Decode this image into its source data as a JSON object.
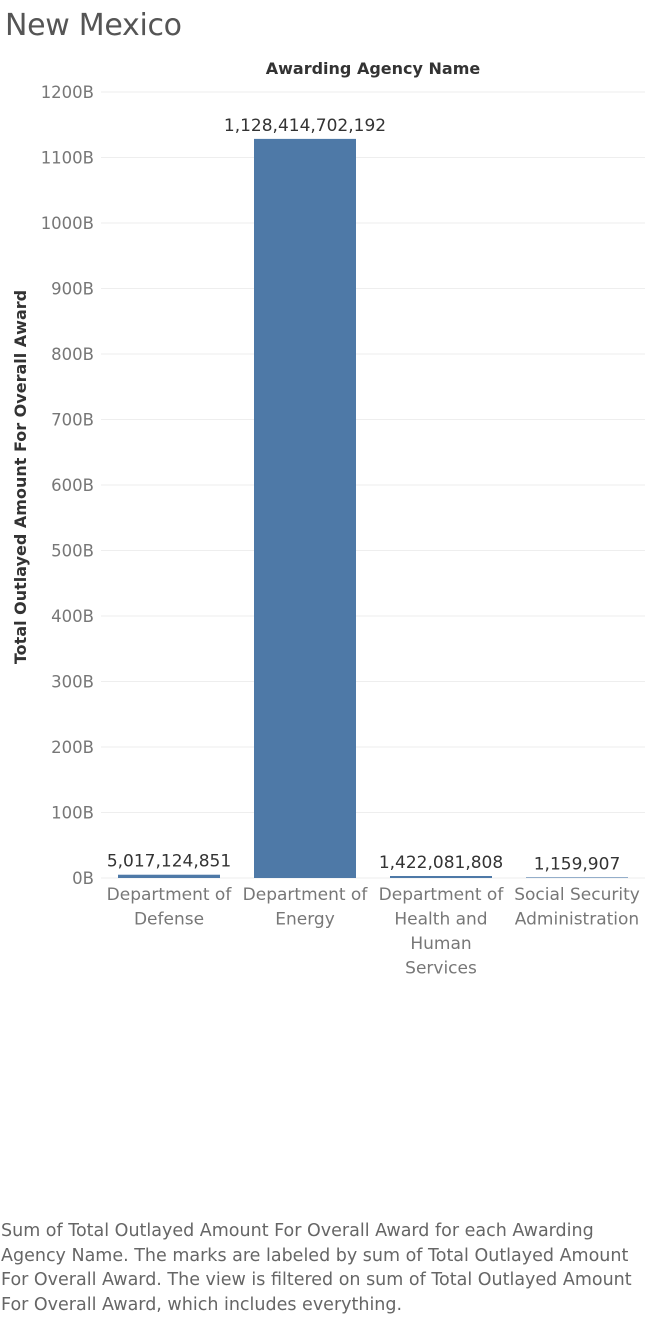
{
  "page": {
    "title": "New Mexico",
    "caption": "Sum of Total Outlayed Amount For Overall Award for each Awarding Agency Name.  The marks are labeled by sum of Total Outlayed Amount For Overall Award. The view is filtered on sum of Total Outlayed Amount For Overall Award, which includes everything."
  },
  "chart_data": {
    "type": "bar",
    "title": "",
    "xlabel": "Awarding Agency Name",
    "ylabel": "Total Outlayed Amount For Overall Award",
    "categories": [
      "Department of Defense",
      "Department of Energy",
      "Department of Health and Human Services",
      "Social Security Administration"
    ],
    "category_lines": [
      [
        "Department of",
        "Defense"
      ],
      [
        "Department of",
        "Energy"
      ],
      [
        "Department of",
        "Health and",
        "Human",
        "Services"
      ],
      [
        "Social Security",
        "Administration"
      ]
    ],
    "values": [
      5017124851,
      1128414702192,
      1422081808,
      1159907
    ],
    "value_labels": [
      "5,017,124,851",
      "1,128,414,702,192",
      "1,422,081,808",
      "1,159,907"
    ],
    "ylim": [
      0,
      1200000000000
    ],
    "yticks": [
      0,
      100000000000,
      200000000000,
      300000000000,
      400000000000,
      500000000000,
      600000000000,
      700000000000,
      800000000000,
      900000000000,
      1000000000000,
      1100000000000,
      1200000000000
    ],
    "ytick_labels": [
      "0B",
      "100B",
      "200B",
      "300B",
      "400B",
      "500B",
      "600B",
      "700B",
      "800B",
      "900B",
      "1000B",
      "1100B",
      "1200B"
    ],
    "grid": true,
    "colors": {
      "bar": "#4e79a7",
      "grid": "#eeeeee",
      "axis_text": "#777777",
      "axis_title": "#333333"
    }
  }
}
